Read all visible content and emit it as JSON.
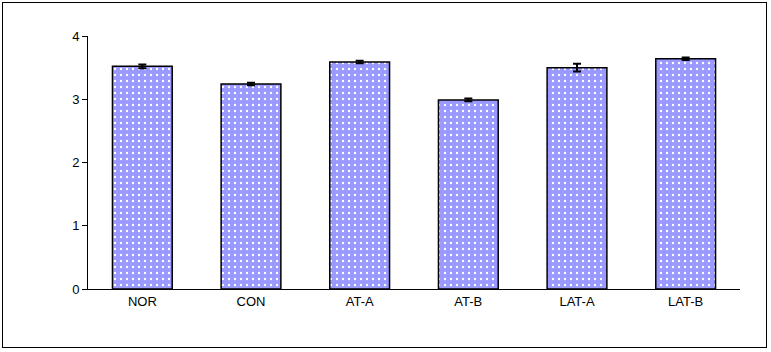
{
  "chart_data": {
    "type": "bar",
    "categories": [
      "NOR",
      "CON",
      "AT-A",
      "AT-B",
      "LAT-A",
      "LAT-B"
    ],
    "values": [
      3.52,
      3.24,
      3.59,
      2.99,
      3.5,
      3.64
    ],
    "error": [
      0.03,
      0.02,
      0.02,
      0.02,
      0.06,
      0.02
    ],
    "color": "#9999ff",
    "ylim": [
      0,
      4
    ],
    "yticks": [
      0,
      1,
      2,
      3,
      4
    ],
    "grid": false
  }
}
